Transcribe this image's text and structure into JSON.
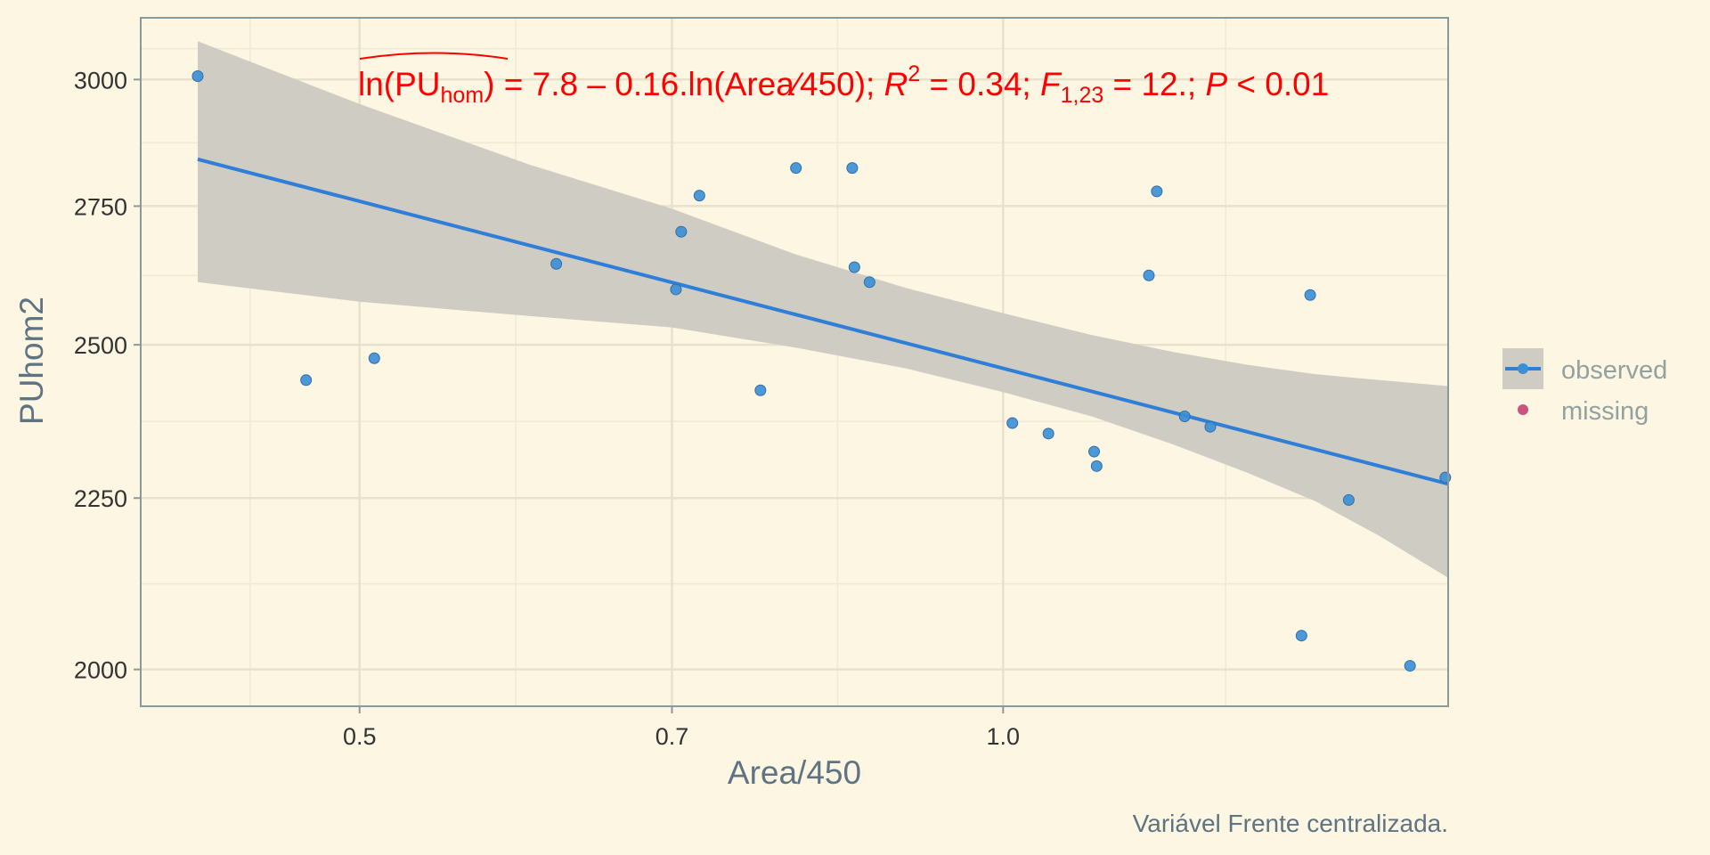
{
  "chart_data": {
    "type": "scatter",
    "xlabel": "Area/450",
    "ylabel": "PUhom2",
    "x_scale": "log",
    "y_scale": "log",
    "xlim": [
      0.395,
      1.615
    ],
    "ylim": [
      1950,
      3130
    ],
    "x_ticks": [
      0.5,
      0.7,
      1.0
    ],
    "x_tick_labels": [
      "0.5",
      "0.7",
      "1.0"
    ],
    "y_ticks": [
      2000,
      2250,
      2500,
      2750,
      3000
    ],
    "y_tick_labels": [
      "2000",
      "2250",
      "2500",
      "2750",
      "3000"
    ],
    "grid": true,
    "caption": "Variável Frente centralizada.",
    "equation": {
      "lhs_text": "ln(PU",
      "lhs_sub": "hom",
      "lhs_close": ")",
      "rhs1": " = 7.8 – 0.16.ln(Area⁄450); ",
      "r_var": "R",
      "r_sup": "2",
      "rhs2": " = 0.34; ",
      "f_var": "F",
      "f_sub": "1,23",
      "rhs3": " = 12.; ",
      "p_var": "P",
      "rhs4": " < 0.01"
    },
    "series": [
      {
        "name": "observed",
        "color": "#3a8fd6",
        "x": [
          0.42,
          0.472,
          0.508,
          0.618,
          0.703,
          0.707,
          0.721,
          0.77,
          0.8,
          0.85,
          0.852,
          0.866,
          1.01,
          1.05,
          1.103,
          1.106,
          1.17,
          1.18,
          1.216,
          1.25,
          1.379,
          1.392,
          1.451,
          1.55,
          1.61
        ],
        "y": [
          3007,
          2440,
          2477,
          2643,
          2597,
          2702,
          2770,
          2423,
          2823,
          2823,
          2637,
          2610,
          2369,
          2352,
          2323,
          2300,
          2622,
          2778,
          2380,
          2363,
          2047,
          2587,
          2247,
          2005,
          2282
        ]
      },
      {
        "name": "missing",
        "color": "#c95480",
        "x": [],
        "y": []
      }
    ],
    "fit": {
      "intercept": 7.8,
      "slope": -0.16,
      "line": {
        "x": [
          0.42,
          1.615
        ],
        "y": [
          2840,
          2272
        ]
      },
      "band_x": [
        0.42,
        0.5,
        0.6,
        0.7,
        0.8,
        0.9,
        1.0,
        1.1,
        1.2,
        1.3,
        1.4,
        1.5,
        1.615
      ],
      "band_lower": [
        2610,
        2575,
        2550,
        2530,
        2495,
        2460,
        2420,
        2380,
        2335,
        2290,
        2245,
        2192,
        2130
      ],
      "band_upper": [
        3080,
        2950,
        2830,
        2745,
        2660,
        2600,
        2555,
        2517,
        2488,
        2466,
        2450,
        2440,
        2430
      ],
      "line_color": "#2f7ed8",
      "band_color": "#cfccc3"
    },
    "equation_color": "#ff0000",
    "legend_position": "right"
  }
}
